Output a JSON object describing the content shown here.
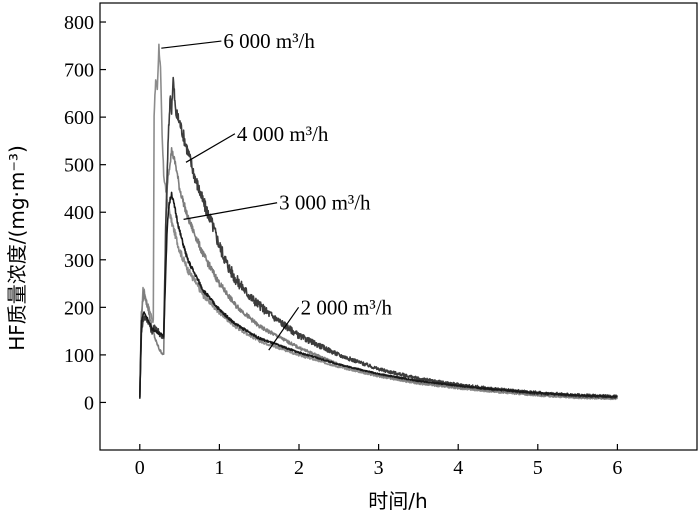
{
  "chart_data": {
    "type": "line",
    "title": "",
    "xlabel": "时间/h",
    "ylabel": "HF质量浓度/(mg·m⁻³)",
    "xlim": [
      -0.5,
      7
    ],
    "ylim": [
      -100,
      840
    ],
    "x_ticks": [
      "0",
      "1",
      "2",
      "3",
      "4",
      "5",
      "6"
    ],
    "y_ticks": [
      "0",
      "100",
      "200",
      "300",
      "400",
      "500",
      "600",
      "700",
      "800"
    ],
    "grid": false,
    "legend": "none",
    "series": [
      {
        "name": "6 000 m³/h",
        "color": "#8c8c8c",
        "noise": 8,
        "x": [
          0,
          0.02,
          0.04,
          0.06,
          0.08,
          0.1,
          0.12,
          0.14,
          0.16,
          0.17,
          0.18,
          0.2,
          0.22,
          0.24,
          0.26,
          0.28,
          0.3,
          0.35,
          0.4,
          0.5,
          0.6,
          0.8,
          1.0,
          1.2,
          1.5,
          2,
          2.5,
          3,
          3.5,
          4,
          4.5,
          5,
          5.5,
          6
        ],
        "values": [
          10,
          160,
          240,
          230,
          215,
          205,
          195,
          185,
          175,
          170,
          600,
          680,
          660,
          750,
          700,
          560,
          480,
          420,
          380,
          320,
          280,
          225,
          190,
          160,
          130,
          100,
          75,
          55,
          40,
          30,
          22,
          15,
          10,
          8
        ]
      },
      {
        "name": "4 000 m³/h",
        "color": "#3c3c3c",
        "noise": 14,
        "x": [
          0,
          0.02,
          0.05,
          0.1,
          0.15,
          0.2,
          0.25,
          0.3,
          0.33,
          0.35,
          0.38,
          0.4,
          0.42,
          0.45,
          0.5,
          0.55,
          0.6,
          0.7,
          0.8,
          0.9,
          1.0,
          1.1,
          1.2,
          1.4,
          1.6,
          1.8,
          2,
          2.5,
          3,
          3.5,
          4,
          4.5,
          5,
          5.5,
          6
        ],
        "values": [
          10,
          150,
          180,
          175,
          150,
          160,
          145,
          135,
          400,
          520,
          640,
          620,
          680,
          610,
          590,
          560,
          530,
          470,
          420,
          380,
          330,
          290,
          260,
          220,
          190,
          165,
          140,
          100,
          70,
          50,
          37,
          27,
          20,
          15,
          12
        ]
      },
      {
        "name": "3 000 m³/h",
        "color": "#7d7d7d",
        "noise": 8,
        "x": [
          0,
          0.02,
          0.05,
          0.1,
          0.15,
          0.2,
          0.25,
          0.3,
          0.33,
          0.35,
          0.4,
          0.45,
          0.5,
          0.6,
          0.8,
          1.0,
          1.2,
          1.5,
          2,
          2.5,
          3,
          3.5,
          4,
          4.5,
          5,
          5.5,
          6
        ],
        "values": [
          10,
          190,
          230,
          200,
          160,
          130,
          110,
          100,
          400,
          470,
          530,
          500,
          450,
          390,
          310,
          250,
          205,
          160,
          115,
          80,
          58,
          42,
          32,
          24,
          17,
          12,
          10
        ]
      },
      {
        "name": "2 000 m³/h",
        "color": "#1a1a1a",
        "noise": 5,
        "x": [
          0,
          0.02,
          0.05,
          0.1,
          0.15,
          0.2,
          0.25,
          0.3,
          0.34,
          0.36,
          0.4,
          0.45,
          0.5,
          0.6,
          0.8,
          1.0,
          1.2,
          1.5,
          2,
          2.5,
          3,
          3.5,
          4,
          4.5,
          5,
          5.5,
          6
        ],
        "values": [
          10,
          170,
          190,
          175,
          155,
          150,
          145,
          140,
          350,
          410,
          440,
          400,
          360,
          300,
          235,
          195,
          165,
          135,
          105,
          80,
          60,
          45,
          35,
          27,
          20,
          15,
          12
        ]
      }
    ]
  }
}
